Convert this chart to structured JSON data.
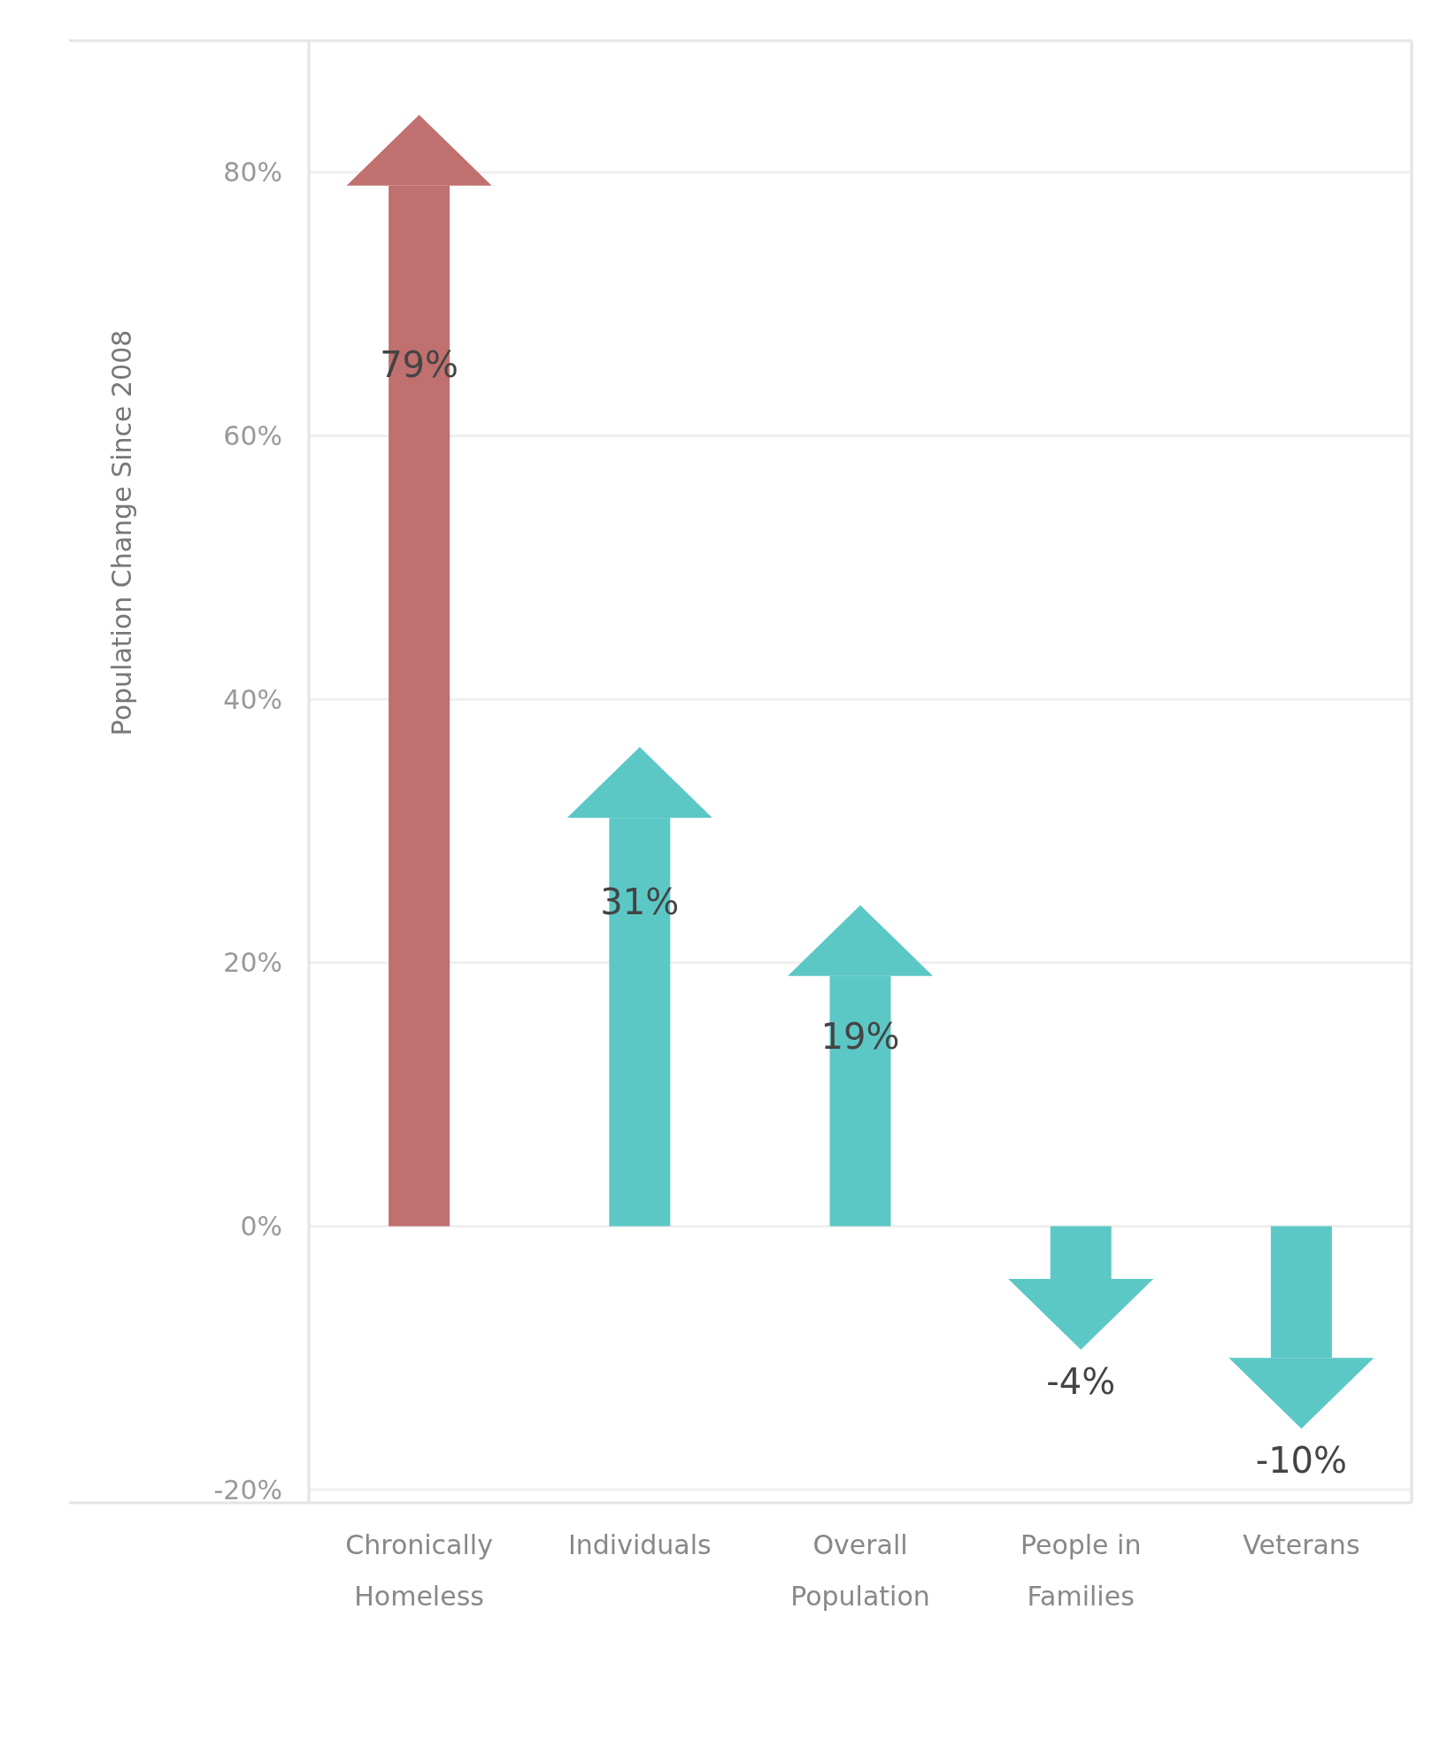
{
  "chart_data": {
    "type": "bar",
    "ylabel": "Population Change Since 2008",
    "categories": [
      "Chronically Homeless",
      "Individuals",
      "Overall Population",
      "People in Families",
      "Veterans"
    ],
    "values": [
      79,
      31,
      19,
      -4,
      -10
    ],
    "colors": [
      "#c0706e",
      "#5cc8c6",
      "#5cc8c6",
      "#5cc8c6",
      "#5cc8c6"
    ],
    "value_labels": [
      "79%",
      "31%",
      "19%",
      "-4%",
      "-10%"
    ],
    "ylim": [
      -21,
      90
    ],
    "yticks": [
      {
        "value": -20,
        "label": "-20%"
      },
      {
        "value": 0,
        "label": "0%"
      },
      {
        "value": 20,
        "label": "20%"
      },
      {
        "value": 40,
        "label": "40%"
      },
      {
        "value": 60,
        "label": "60%"
      },
      {
        "value": 80,
        "label": "80%"
      }
    ],
    "grid": "y"
  }
}
